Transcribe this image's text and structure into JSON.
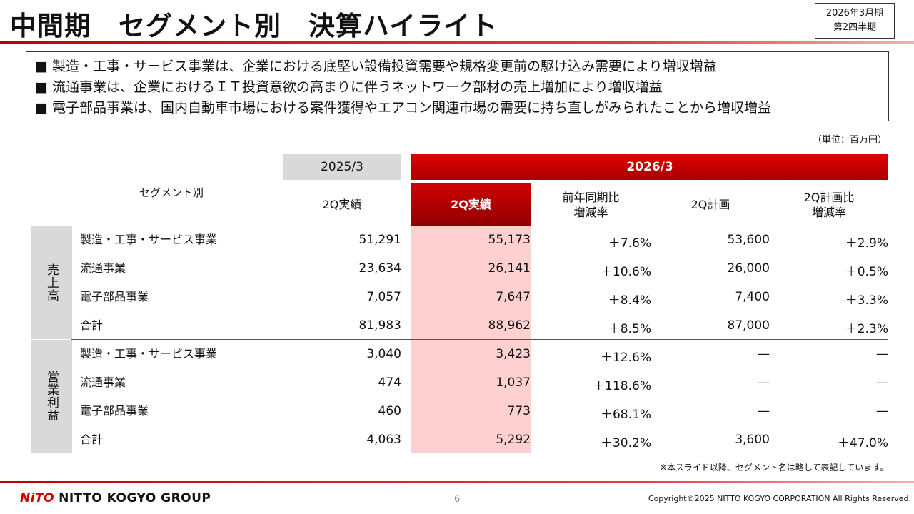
{
  "header": {
    "title": "中間期　セグメント別　決算ハイライト",
    "period_line1": "2026年3月期",
    "period_line2": "第2四半期"
  },
  "summary": [
    "■ 製造・工事・サービス事業は、企業における底堅い設備投資需要や規格変更前の駆け込み需要により増収増益",
    "■ 流通事業は、企業におけるＩＴ投資意欲の高まりに伴うネットワーク部材の売上増加により増収増益",
    "■ 電子部品事業は、国内自動車市場における案件獲得やエアコン関連市場の需要に持ち直しがみられたことから増収増益"
  ],
  "unit": "（単位：百万円）",
  "table": {
    "segment_header": "セグメント別",
    "year_prev": "2025/3",
    "year_cur": "2026/3",
    "columns": [
      "2Q実績",
      "2Q実績",
      "前年同期比\n増減率",
      "2Q計画",
      "2Q計画比\n増減率"
    ],
    "groups": [
      {
        "label": "売上高",
        "rows": [
          [
            "製造・工事・サービス事業",
            "51,291",
            "55,173",
            "＋7.6%",
            "53,600",
            "＋2.9%"
          ],
          [
            "流通事業",
            "23,634",
            "26,141",
            "＋10.6%",
            "26,000",
            "＋0.5%"
          ],
          [
            "電子部品事業",
            "7,057",
            "7,647",
            "＋8.4%",
            "7,400",
            "＋3.3%"
          ],
          [
            "合計",
            "81,983",
            "88,962",
            "＋8.5%",
            "87,000",
            "＋2.3%"
          ]
        ]
      },
      {
        "label": "営業利益",
        "rows": [
          [
            "製造・工事・サービス事業",
            "3,040",
            "3,423",
            "＋12.6%",
            "—",
            "—"
          ],
          [
            "流通事業",
            "474",
            "1,037",
            "＋118.6%",
            "—",
            "—"
          ],
          [
            "電子部品事業",
            "460",
            "773",
            "＋68.1%",
            "—",
            "—"
          ],
          [
            "合計",
            "4,063",
            "5,292",
            "＋30.2%",
            "3,600",
            "＋47.0%"
          ]
        ]
      }
    ]
  },
  "note": "※本スライド以降、セグメント名は略して表記しています。",
  "footer": {
    "logo_mark": "NITO",
    "logo_text": "NITTO KOGYO GROUP",
    "page": "6",
    "copyright": "Copyright©2025 NITTO KOGYO CORPORATION All Rights Reserved."
  }
}
